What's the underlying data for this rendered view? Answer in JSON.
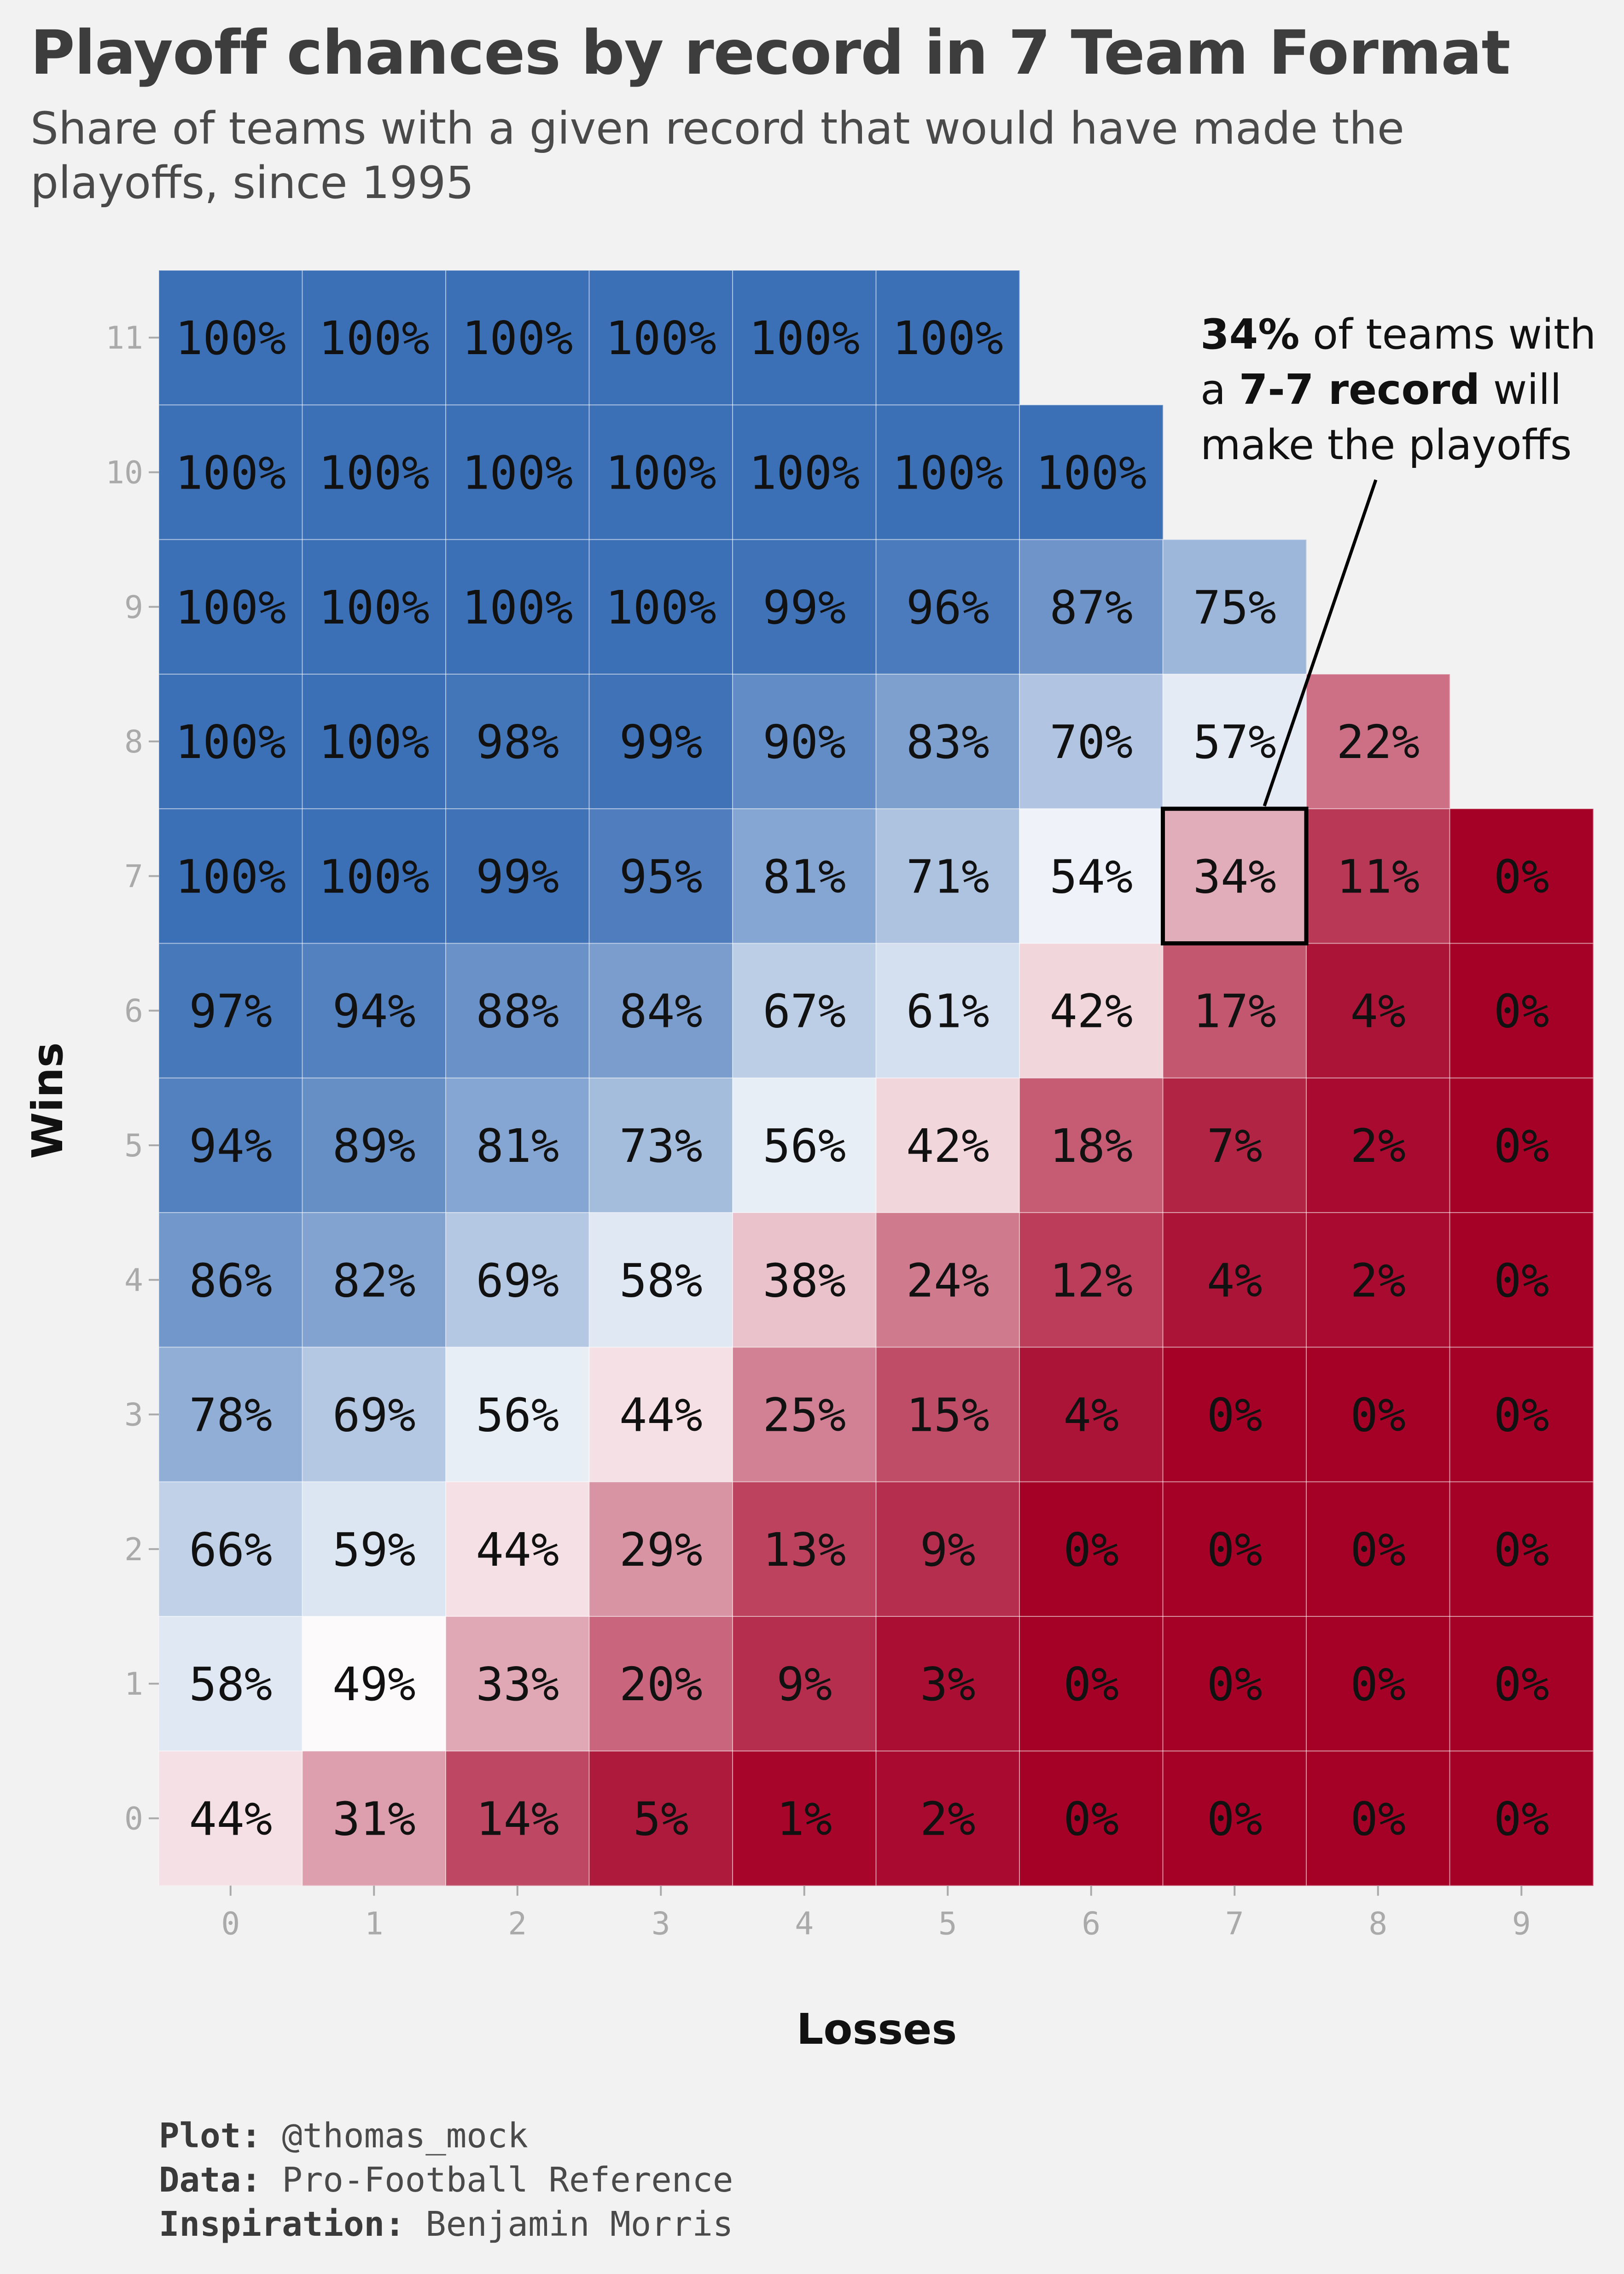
{
  "title": "Playoff chances by record in 7 Team Format",
  "subtitle": "Share of teams with a given record that would have made the playoffs, since 1995",
  "caption": {
    "plot_label": "Plot:",
    "plot_value": "@thomas_mock",
    "data_label": "Data:",
    "data_value": "Pro-Football Reference",
    "inspiration_label": "Inspiration:",
    "inspiration_value": "Benjamin Morris"
  },
  "colors": {
    "background": "#f2f2f2",
    "high": "#3b6fb6",
    "mid": "#ffffff",
    "low": "#a50026",
    "highlight_border": "#000000"
  },
  "chart_data": {
    "type": "heatmap",
    "title": "Playoff chances by record in 7 Team Format",
    "xlabel": "Losses",
    "ylabel": "Wins",
    "x_ticks": [
      "0",
      "1",
      "2",
      "3",
      "4",
      "5",
      "6",
      "7",
      "8",
      "9"
    ],
    "y_ticks": [
      "0",
      "1",
      "2",
      "3",
      "4",
      "5",
      "6",
      "7",
      "8",
      "9",
      "10",
      "11"
    ],
    "value_unit": "%",
    "grid": false,
    "rows": [
      {
        "wins": 11,
        "values": [
          100,
          100,
          100,
          100,
          100,
          100
        ]
      },
      {
        "wins": 10,
        "values": [
          100,
          100,
          100,
          100,
          100,
          100,
          100
        ]
      },
      {
        "wins": 9,
        "values": [
          100,
          100,
          100,
          100,
          99,
          96,
          87,
          75
        ]
      },
      {
        "wins": 8,
        "values": [
          100,
          100,
          98,
          99,
          90,
          83,
          70,
          57,
          22
        ]
      },
      {
        "wins": 7,
        "values": [
          100,
          100,
          99,
          95,
          81,
          71,
          54,
          34,
          11,
          0
        ]
      },
      {
        "wins": 6,
        "values": [
          97,
          94,
          88,
          84,
          67,
          61,
          42,
          17,
          4,
          0
        ]
      },
      {
        "wins": 5,
        "values": [
          94,
          89,
          81,
          73,
          56,
          42,
          18,
          7,
          2,
          0
        ]
      },
      {
        "wins": 4,
        "values": [
          86,
          82,
          69,
          58,
          38,
          24,
          12,
          4,
          2,
          0
        ]
      },
      {
        "wins": 3,
        "values": [
          78,
          69,
          56,
          44,
          25,
          15,
          4,
          0,
          0,
          0
        ]
      },
      {
        "wins": 2,
        "values": [
          66,
          59,
          44,
          29,
          13,
          9,
          0,
          0,
          0,
          0
        ]
      },
      {
        "wins": 1,
        "values": [
          58,
          49,
          33,
          20,
          9,
          3,
          0,
          0,
          0,
          0
        ]
      },
      {
        "wins": 0,
        "values": [
          44,
          31,
          14,
          5,
          1,
          2,
          0,
          0,
          0,
          0
        ]
      }
    ],
    "highlight": {
      "wins": 7,
      "losses": 7,
      "annotation_parts": [
        {
          "text": "34%",
          "bold": true
        },
        {
          "text": " of teams with",
          "bold": false
        },
        {
          "text": "a ",
          "bold": false,
          "newline": true
        },
        {
          "text": "7-7 record",
          "bold": true
        },
        {
          "text": " will",
          "bold": false
        },
        {
          "text": "make the playoffs",
          "bold": false,
          "newline": true
        }
      ]
    }
  }
}
